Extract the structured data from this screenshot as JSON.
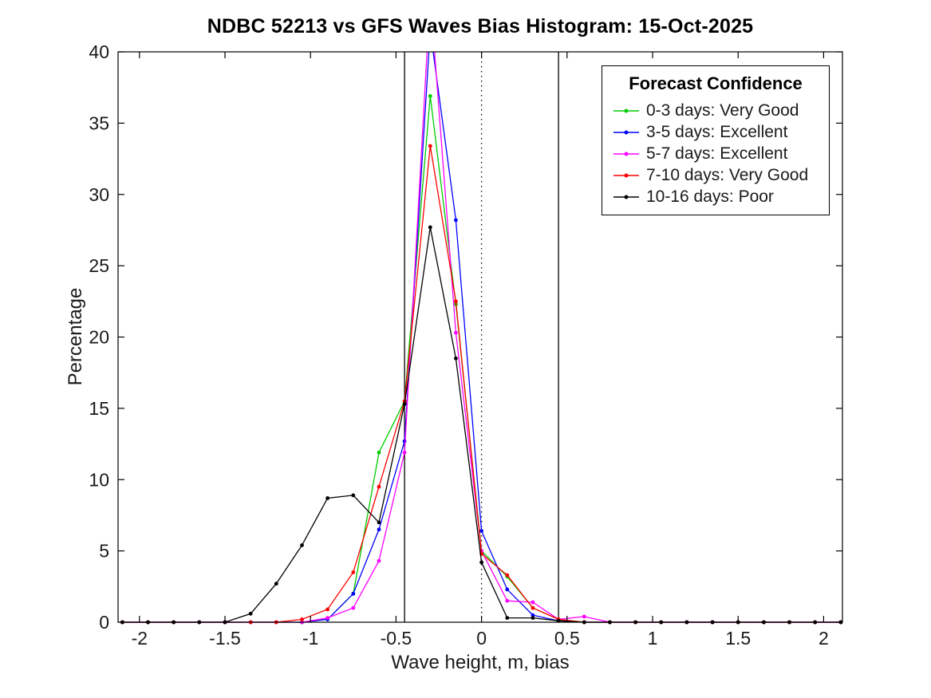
{
  "figure": {
    "background": "#ffffff"
  },
  "chart_data": {
    "type": "line",
    "title": "NDBC 52213 vs GFS Waves Bias Histogram: 15-Oct-2025",
    "xlabel": "Wave height, m, bias",
    "ylabel": "Percentage",
    "xlim": [
      -2.125,
      2.11
    ],
    "ylim": [
      0,
      40
    ],
    "xticks": [
      -2,
      -1.5,
      -1,
      -0.5,
      0,
      0.5,
      1,
      1.5,
      2
    ],
    "xtick_labels": [
      "-2",
      "-1.5",
      "-1",
      "-0.5",
      "0",
      "0.5",
      "1",
      "1.5",
      "2"
    ],
    "yticks": [
      0,
      5,
      10,
      15,
      20,
      25,
      30,
      35,
      40
    ],
    "ytick_labels": [
      "0",
      "5",
      "10",
      "15",
      "20",
      "25",
      "30",
      "35",
      "40"
    ],
    "grid": false,
    "axis_color": "#000000",
    "tick_label_color": "#1a1a1a",
    "reference_lines": [
      {
        "x": -0.45,
        "style": "solid",
        "color": "#000000"
      },
      {
        "x": 0,
        "style": "dotted",
        "color": "#000000"
      },
      {
        "x": 0.45,
        "style": "solid",
        "color": "#000000"
      }
    ],
    "legend": {
      "title": "Forecast Confidence",
      "position": "top-right"
    },
    "x": [
      -2.1,
      -1.95,
      -1.8,
      -1.65,
      -1.5,
      -1.35,
      -1.2,
      -1.05,
      -0.9,
      -0.75,
      -0.6,
      -0.45,
      -0.3,
      -0.15,
      0,
      0.15,
      0.3,
      0.45,
      0.6,
      0.75,
      0.9,
      1.05,
      1.2,
      1.35,
      1.5,
      1.65,
      1.8,
      1.95,
      2.1
    ],
    "series": [
      {
        "name": "0-3 days: Very Good",
        "color": "#00cc00",
        "values": [
          0,
          0,
          0,
          0,
          0,
          0,
          0,
          0,
          0.2,
          2.0,
          11.9,
          15.5,
          36.9,
          22.3,
          5.0,
          3.2,
          1.0,
          0.2,
          0,
          0,
          0,
          0,
          0,
          0,
          0,
          0,
          0,
          0,
          0
        ]
      },
      {
        "name": "3-5 days: Excellent",
        "color": "#0000ff",
        "values": [
          0,
          0,
          0,
          0,
          0,
          0,
          0,
          0,
          0.2,
          2.0,
          6.5,
          12.7,
          41.5,
          28.2,
          6.4,
          2.3,
          0.5,
          0.1,
          0,
          0,
          0,
          0,
          0,
          0,
          0,
          0,
          0,
          0,
          0
        ]
      },
      {
        "name": "5-7 days: Excellent",
        "color": "#ff00ff",
        "values": [
          0,
          0,
          0,
          0,
          0,
          0,
          0,
          0,
          0.3,
          1.0,
          4.3,
          11.9,
          44.0,
          20.3,
          5.0,
          1.5,
          1.4,
          0.2,
          0.4,
          0,
          0,
          0,
          0,
          0,
          0,
          0,
          0,
          0,
          0
        ]
      },
      {
        "name": "7-10 days: Very Good",
        "color": "#ff0000",
        "values": [
          0,
          0,
          0,
          0,
          0,
          0,
          0,
          0.2,
          0.9,
          3.5,
          9.5,
          15.5,
          33.4,
          22.5,
          4.8,
          3.3,
          1.0,
          0.2,
          0,
          0,
          0,
          0,
          0,
          0,
          0,
          0,
          0,
          0,
          0
        ]
      },
      {
        "name": "10-16 days: Poor",
        "color": "#000000",
        "values": [
          0,
          0,
          0,
          0,
          0,
          0.6,
          2.7,
          5.4,
          8.7,
          8.9,
          7.0,
          15.3,
          27.7,
          18.5,
          4.2,
          0.3,
          0.3,
          0.1,
          0,
          0,
          0,
          0,
          0,
          0,
          0,
          0,
          0,
          0,
          0
        ]
      }
    ]
  }
}
